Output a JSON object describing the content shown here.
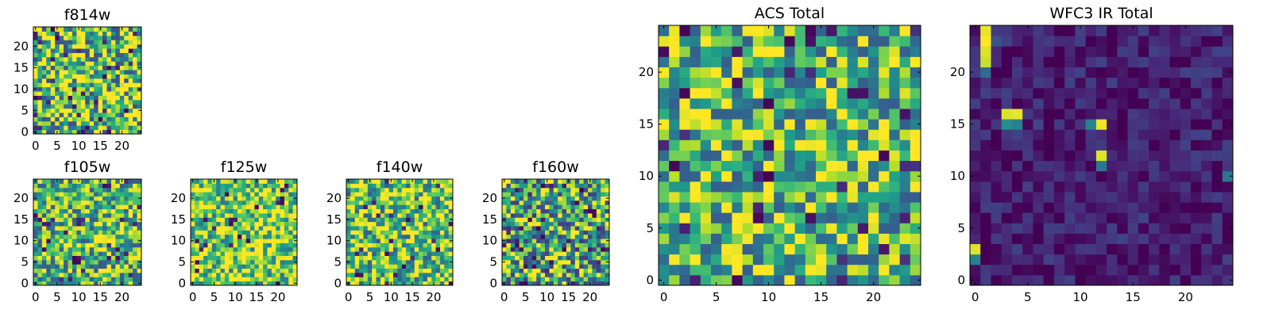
{
  "figure": {
    "colormap": "viridis",
    "colors": {
      "low": "#440154",
      "mid": "#21918c",
      "high": "#fde725",
      "frame": "#000000",
      "background": "#ffffff"
    }
  },
  "chart_data": [
    {
      "id": "f814w",
      "type": "heatmap",
      "title": "f814w",
      "grid_size": [
        25,
        25
      ],
      "xlim": [
        -0.5,
        24.5
      ],
      "ylim": [
        -0.5,
        24.5
      ],
      "xticks": [
        0,
        5,
        10,
        15,
        20
      ],
      "yticks": [
        0,
        5,
        10,
        15,
        20
      ],
      "xticklabels": [
        "0",
        "5",
        "10",
        "15",
        "20"
      ],
      "yticklabels": [
        "0",
        "5",
        "10",
        "15",
        "20"
      ],
      "value_range": [
        0,
        1
      ],
      "distribution": {
        "base": 0.72,
        "spread": 0.55,
        "min": 0.25,
        "rare_low": 0.05
      },
      "seed": 11,
      "hot_pixels": []
    },
    {
      "id": "f105w",
      "type": "heatmap",
      "title": "f105w",
      "grid_size": [
        25,
        25
      ],
      "xlim": [
        -0.5,
        24.5
      ],
      "ylim": [
        -0.5,
        24.5
      ],
      "xticks": [
        0,
        5,
        10,
        15,
        20
      ],
      "yticks": [
        0,
        5,
        10,
        15,
        20
      ],
      "xticklabels": [
        "0",
        "5",
        "10",
        "15",
        "20"
      ],
      "yticklabels": [
        "0",
        "5",
        "10",
        "15",
        "20"
      ],
      "value_range": [
        0,
        1
      ],
      "distribution": {
        "base": 0.68,
        "spread": 0.45,
        "min": 0.3,
        "rare_low": 0.03
      },
      "seed": 23,
      "hot_pixels": [
        [
          9,
          5,
          0.02
        ],
        [
          10,
          5,
          0.02
        ],
        [
          9,
          6,
          0.02
        ],
        [
          10,
          6,
          0.05
        ],
        [
          19,
          6,
          0.05
        ],
        [
          22,
          2,
          0.1
        ]
      ]
    },
    {
      "id": "f125w",
      "type": "heatmap",
      "title": "f125w",
      "grid_size": [
        25,
        25
      ],
      "xlim": [
        -0.5,
        24.5
      ],
      "ylim": [
        -0.5,
        24.5
      ],
      "xticks": [
        0,
        5,
        10,
        15,
        20
      ],
      "yticks": [
        0,
        5,
        10,
        15,
        20
      ],
      "xticklabels": [
        "0",
        "5",
        "10",
        "15",
        "20"
      ],
      "yticklabels": [
        "0",
        "5",
        "10",
        "15",
        "20"
      ],
      "value_range": [
        0,
        1
      ],
      "distribution": {
        "base": 0.78,
        "spread": 0.4,
        "min": 0.35,
        "rare_low": 0.03
      },
      "seed": 37,
      "hot_pixels": [
        [
          21,
          19,
          0.02
        ],
        [
          22,
          23,
          0.05
        ],
        [
          15,
          18,
          0.02
        ],
        [
          2,
          8,
          0.1
        ]
      ]
    },
    {
      "id": "f140w",
      "type": "heatmap",
      "title": "f140w",
      "grid_size": [
        25,
        25
      ],
      "xlim": [
        -0.5,
        24.5
      ],
      "ylim": [
        -0.5,
        24.5
      ],
      "xticks": [
        0,
        5,
        10,
        15,
        20
      ],
      "yticks": [
        0,
        5,
        10,
        15,
        20
      ],
      "xticklabels": [
        "0",
        "5",
        "10",
        "15",
        "20"
      ],
      "yticklabels": [
        "0",
        "5",
        "10",
        "15",
        "20"
      ],
      "value_range": [
        0,
        1
      ],
      "distribution": {
        "base": 0.74,
        "spread": 0.45,
        "min": 0.3,
        "rare_low": 0.04
      },
      "seed": 41,
      "hot_pixels": [
        [
          9,
          7,
          0.02
        ],
        [
          13,
          4,
          0.02
        ],
        [
          10,
          10,
          0.05
        ],
        [
          3,
          2,
          0.05
        ]
      ]
    },
    {
      "id": "f160w",
      "type": "heatmap",
      "title": "f160w",
      "grid_size": [
        25,
        25
      ],
      "xlim": [
        -0.5,
        24.5
      ],
      "ylim": [
        -0.5,
        24.5
      ],
      "xticks": [
        0,
        5,
        10,
        15,
        20
      ],
      "yticks": [
        0,
        5,
        10,
        15,
        20
      ],
      "xticklabels": [
        "0",
        "5",
        "10",
        "15",
        "20"
      ],
      "yticklabels": [
        "0",
        "5",
        "10",
        "15",
        "20"
      ],
      "value_range": [
        0,
        1
      ],
      "distribution": {
        "base": 0.62,
        "spread": 0.55,
        "min": 0.2,
        "rare_low": 0.08
      },
      "seed": 53,
      "hot_pixels": [
        [
          20,
          17,
          0.02
        ],
        [
          21,
          16,
          0.02
        ],
        [
          9,
          11,
          0.02
        ],
        [
          4,
          0,
          0.03
        ],
        [
          5,
          0,
          0.03
        ],
        [
          14,
          8,
          0.02
        ]
      ]
    },
    {
      "id": "acs_total",
      "type": "heatmap",
      "title": "ACS Total",
      "grid_size": [
        25,
        25
      ],
      "xlim": [
        -0.5,
        24.5
      ],
      "ylim": [
        -0.5,
        24.5
      ],
      "xticks": [
        0,
        5,
        10,
        15,
        20
      ],
      "yticks": [
        0,
        5,
        10,
        15,
        20
      ],
      "xticklabels": [
        "0",
        "5",
        "10",
        "15",
        "20"
      ],
      "yticklabels": [
        "0",
        "5",
        "10",
        "15",
        "20"
      ],
      "value_range": [
        0,
        1
      ],
      "distribution": {
        "base": 0.68,
        "spread": 0.42,
        "min": 0.3,
        "rare_low": 0.04
      },
      "seed": 67,
      "hot_pixels": [
        [
          14,
          24,
          0.02
        ],
        [
          14,
          23,
          0.05
        ],
        [
          18,
          18,
          0.05
        ],
        [
          19,
          18,
          0.05
        ],
        [
          10,
          13,
          0.02
        ],
        [
          1,
          11,
          0.02
        ],
        [
          7,
          0,
          0.02
        ],
        [
          9,
          6,
          0.02
        ],
        [
          14,
          6,
          0.05
        ],
        [
          7,
          19,
          0.05
        ],
        [
          17,
          0,
          0.1
        ]
      ]
    },
    {
      "id": "wfc3_ir_total",
      "type": "heatmap",
      "title": "WFC3 IR Total",
      "grid_size": [
        25,
        25
      ],
      "xlim": [
        -0.5,
        24.5
      ],
      "ylim": [
        -0.5,
        24.5
      ],
      "xticks": [
        0,
        5,
        10,
        15,
        20
      ],
      "yticks": [
        0,
        5,
        10,
        15,
        20
      ],
      "xticklabels": [
        "0",
        "5",
        "10",
        "15",
        "20"
      ],
      "yticklabels": [
        "0",
        "5",
        "10",
        "15",
        "20"
      ],
      "value_range": [
        0,
        1
      ],
      "distribution": {
        "base": 0.08,
        "spread": 0.12,
        "min": 0.0,
        "rare_low": 0.0
      },
      "seed": 79,
      "hot_pixels": [
        [
          1,
          24,
          0.97
        ],
        [
          1,
          23,
          1.0
        ],
        [
          1,
          22,
          0.95
        ],
        [
          1,
          21,
          0.92
        ],
        [
          1,
          20,
          0.35
        ],
        [
          2,
          23,
          0.25
        ],
        [
          3,
          16,
          0.95
        ],
        [
          4,
          16,
          0.97
        ],
        [
          3,
          15,
          0.5
        ],
        [
          4,
          15,
          0.45
        ],
        [
          11,
          15,
          0.45
        ],
        [
          12,
          15,
          0.98
        ],
        [
          12,
          12,
          0.95
        ],
        [
          12,
          11,
          0.4
        ],
        [
          0,
          3,
          0.95
        ],
        [
          0,
          2,
          0.45
        ],
        [
          24,
          10,
          0.4
        ]
      ]
    }
  ]
}
